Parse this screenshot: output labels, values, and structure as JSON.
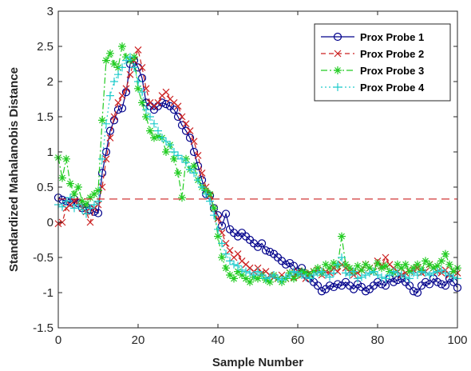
{
  "chart_data": {
    "type": "line",
    "title": "",
    "xlabel": "Sample Number",
    "ylabel": "Standardized Mahalanobis Distance",
    "xlim": [
      0,
      100
    ],
    "ylim": [
      -1.5,
      3
    ],
    "x_ticks": [
      "0",
      "20",
      "40",
      "60",
      "80",
      "100"
    ],
    "y_ticks": [
      "-1.5",
      "-1",
      "-0.5",
      "0",
      "0.5",
      "1",
      "1.5",
      "2",
      "2.5",
      "3"
    ],
    "grid": false,
    "legend_position": "top-right",
    "threshold_line": 0.33,
    "series": [
      {
        "name": "Prox Probe 1",
        "color": "#00008b",
        "line_style": "solid",
        "marker": "circle",
        "values": [
          0.35,
          0.32,
          0.3,
          0.28,
          0.33,
          0.27,
          0.2,
          0.22,
          0.18,
          0.15,
          0.13,
          0.7,
          1.0,
          1.3,
          1.45,
          1.6,
          1.62,
          1.85,
          2.25,
          2.3,
          2.2,
          2.05,
          1.7,
          1.65,
          1.6,
          1.65,
          1.7,
          1.68,
          1.65,
          1.6,
          1.5,
          1.38,
          1.3,
          1.2,
          1.0,
          0.8,
          0.6,
          0.4,
          0.38,
          0.2,
          0.1,
          -0.05,
          0.12,
          -0.1,
          -0.15,
          -0.2,
          -0.15,
          -0.2,
          -0.25,
          -0.3,
          -0.35,
          -0.3,
          -0.4,
          -0.42,
          -0.45,
          -0.5,
          -0.55,
          -0.6,
          -0.58,
          -0.62,
          -0.7,
          -0.65,
          -0.75,
          -0.8,
          -0.85,
          -0.9,
          -0.98,
          -0.95,
          -0.9,
          -0.92,
          -0.88,
          -0.9,
          -0.85,
          -0.9,
          -0.95,
          -0.88,
          -0.92,
          -0.98,
          -0.95,
          -0.9,
          -0.85,
          -0.88,
          -0.9,
          -0.8,
          -0.85,
          -0.82,
          -0.8,
          -0.85,
          -0.9,
          -0.98,
          -1.0,
          -0.9,
          -0.85,
          -0.88,
          -0.8,
          -0.85,
          -0.88,
          -0.9,
          -0.8,
          -0.85,
          -0.93
        ]
      },
      {
        "name": "Prox Probe 2",
        "color": "#cc2222",
        "line_style": "dashed",
        "marker": "x",
        "values": [
          -0.02,
          0.0,
          0.2,
          0.25,
          0.3,
          0.28,
          0.2,
          0.15,
          0.0,
          0.2,
          0.25,
          0.5,
          0.9,
          1.2,
          1.5,
          1.7,
          1.8,
          1.9,
          2.1,
          2.3,
          2.45,
          2.2,
          1.9,
          1.7,
          1.65,
          1.7,
          1.8,
          1.85,
          1.75,
          1.7,
          1.65,
          1.5,
          1.4,
          1.3,
          1.15,
          0.95,
          0.7,
          0.5,
          0.38,
          0.2,
          0.05,
          -0.15,
          -0.3,
          -0.4,
          -0.5,
          -0.45,
          -0.55,
          -0.6,
          -0.65,
          -0.7,
          -0.65,
          -0.72,
          -0.7,
          -0.75,
          -0.78,
          -0.8,
          -0.75,
          -0.8,
          -0.72,
          -0.78,
          -0.7,
          -0.75,
          -0.8,
          -0.72,
          -0.7,
          -0.68,
          -0.75,
          -0.7,
          -0.72,
          -0.65,
          -0.7,
          -0.6,
          -0.65,
          -0.7,
          -0.75,
          -0.72,
          -0.68,
          -0.6,
          -0.65,
          -0.7,
          -0.55,
          -0.62,
          -0.5,
          -0.6,
          -0.65,
          -0.7,
          -0.75,
          -0.72,
          -0.7,
          -0.68,
          -0.65,
          -0.72,
          -0.7,
          -0.6,
          -0.65,
          -0.7,
          -0.72,
          -0.68,
          -0.75,
          -0.7,
          -0.72
        ]
      },
      {
        "name": "Prox Probe 3",
        "color": "#22cc22",
        "line_style": "dashdot",
        "marker": "asterisk",
        "values": [
          0.92,
          0.63,
          0.9,
          0.55,
          0.4,
          0.5,
          0.3,
          0.25,
          0.35,
          0.4,
          0.45,
          1.45,
          2.3,
          2.4,
          2.25,
          2.2,
          2.5,
          2.35,
          2.3,
          2.35,
          1.9,
          1.7,
          1.5,
          1.3,
          1.2,
          1.22,
          1.2,
          1.0,
          1.1,
          0.9,
          0.7,
          0.35,
          0.9,
          0.75,
          0.8,
          0.6,
          0.5,
          0.45,
          0.4,
          0.2,
          -0.2,
          -0.5,
          -0.65,
          -0.75,
          -0.8,
          -0.7,
          -0.75,
          -0.8,
          -0.85,
          -0.78,
          -0.8,
          -0.75,
          -0.82,
          -0.85,
          -0.75,
          -0.8,
          -0.85,
          -0.8,
          -0.72,
          -0.8,
          -0.75,
          -0.7,
          -0.72,
          -0.75,
          -0.7,
          -0.65,
          -0.72,
          -0.6,
          -0.65,
          -0.58,
          -0.62,
          -0.2,
          -0.6,
          -0.65,
          -0.7,
          -0.62,
          -0.68,
          -0.6,
          -0.65,
          -0.7,
          -0.58,
          -0.65,
          -0.62,
          -0.7,
          -0.72,
          -0.6,
          -0.65,
          -0.6,
          -0.7,
          -0.65,
          -0.6,
          -0.68,
          -0.55,
          -0.6,
          -0.65,
          -0.62,
          -0.55,
          -0.45,
          -0.6,
          -0.7,
          -0.65
        ]
      },
      {
        "name": "Prox Probe 4",
        "color": "#22cccc",
        "line_style": "dotted",
        "marker": "plus",
        "values": [
          0.25,
          0.22,
          0.3,
          0.35,
          0.2,
          0.25,
          0.18,
          0.12,
          0.2,
          0.25,
          0.3,
          0.9,
          1.4,
          1.8,
          2.0,
          2.1,
          2.2,
          2.3,
          2.35,
          2.2,
          2.0,
          1.85,
          1.6,
          1.5,
          1.4,
          1.3,
          1.2,
          1.15,
          1.1,
          1.0,
          0.95,
          0.9,
          0.85,
          0.75,
          0.7,
          0.6,
          0.5,
          0.4,
          0.3,
          0.1,
          -0.1,
          -0.3,
          -0.45,
          -0.55,
          -0.6,
          -0.62,
          -0.68,
          -0.7,
          -0.72,
          -0.75,
          -0.7,
          -0.75,
          -0.8,
          -0.78,
          -0.75,
          -0.8,
          -0.82,
          -0.78,
          -0.75,
          -0.7,
          -0.72,
          -0.75,
          -0.78,
          -0.8,
          -0.75,
          -0.72,
          -0.7,
          -0.75,
          -0.78,
          -0.72,
          -0.6,
          -0.5,
          -0.72,
          -0.75,
          -0.7,
          -0.8,
          -0.78,
          -0.75,
          -0.72,
          -0.7,
          -0.75,
          -0.78,
          -0.8,
          -0.75,
          -0.7,
          -0.72,
          -0.75,
          -0.78,
          -0.8,
          -0.72,
          -0.75,
          -0.7,
          -0.72,
          -0.75,
          -0.72,
          -0.7,
          -0.68,
          -0.72,
          -0.75,
          -0.78,
          -0.8
        ]
      }
    ]
  }
}
